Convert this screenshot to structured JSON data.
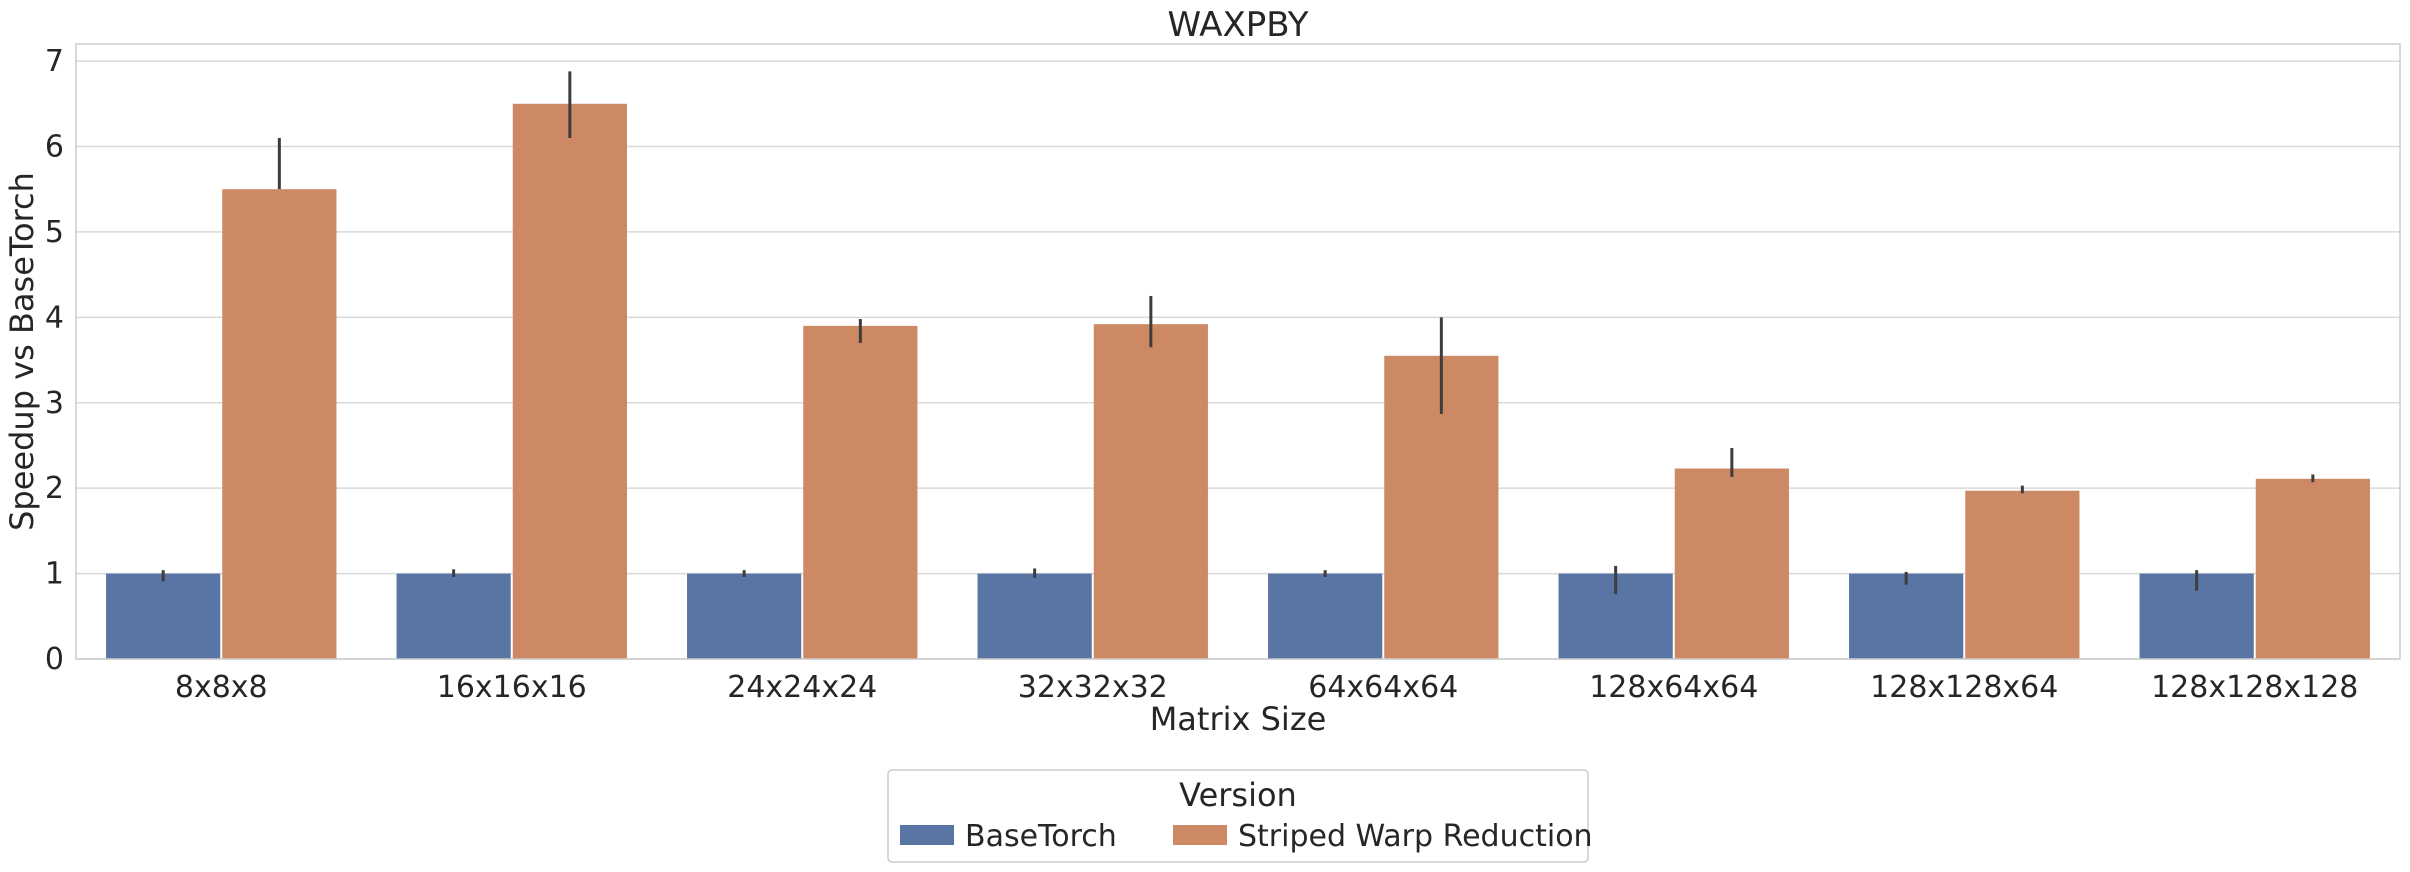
{
  "chart_data": {
    "type": "bar",
    "title": "WAXPBY",
    "xlabel": "Matrix Size",
    "ylabel": "Speedup vs BaseTorch",
    "categories": [
      "8x8x8",
      "16x16x16",
      "24x24x24",
      "32x32x32",
      "64x64x64",
      "128x64x64",
      "128x128x64",
      "128x128x128"
    ],
    "ylim": [
      0,
      7.2
    ],
    "yticks": [
      0,
      1,
      2,
      3,
      4,
      5,
      6,
      7
    ],
    "grid": true,
    "series": [
      {
        "name": "BaseTorch",
        "color": "#5975a4",
        "values": [
          1,
          1,
          1,
          1,
          1,
          1,
          1,
          1
        ],
        "error_low": [
          0.91,
          0.96,
          0.96,
          0.95,
          0.96,
          0.76,
          0.87,
          0.8
        ],
        "error_high": [
          1.04,
          1.05,
          1.04,
          1.06,
          1.04,
          1.09,
          1.02,
          1.04
        ]
      },
      {
        "name": "Striped Warp Reduction",
        "color": "#cc8963",
        "values": [
          5.5,
          6.5,
          3.9,
          3.92,
          3.55,
          2.23,
          1.97,
          2.11
        ],
        "error_low": [
          5.5,
          6.1,
          3.7,
          3.65,
          2.87,
          2.13,
          1.94,
          2.07
        ],
        "error_high": [
          6.1,
          6.88,
          3.98,
          4.25,
          4.0,
          2.47,
          2.03,
          2.16
        ]
      }
    ],
    "legend": {
      "title": "Version",
      "placement": "bottom-center"
    }
  }
}
